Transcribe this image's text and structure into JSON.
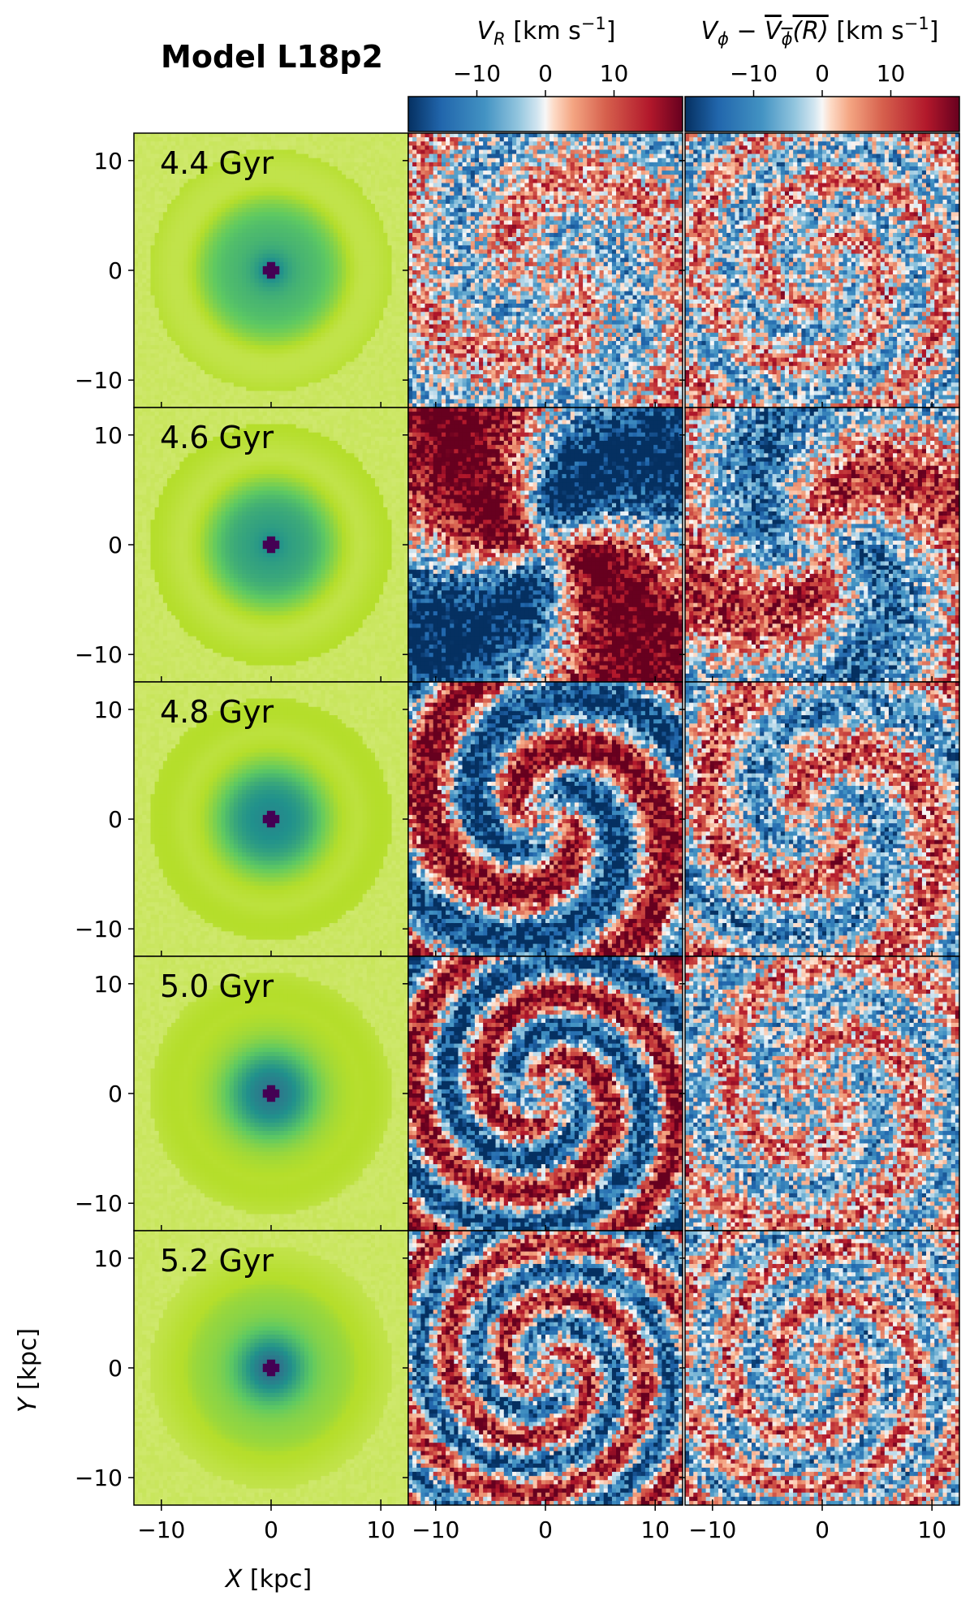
{
  "figure": {
    "title": "Model L18p2",
    "xlabel_prefix": "X",
    "xlabel_suffix": " [kpc]",
    "ylabel_prefix": "Y",
    "ylabel_suffix": " [kpc]",
    "cbar_vr_label": "V_R [km s^-1]",
    "cbar_vphi_label": "V_phi - mean V_phi(R) [km s^-1]"
  },
  "chart_data": {
    "type": "heatmap",
    "title": "Model L18p2",
    "xlabel": "X [kpc]",
    "ylabel": "Y [kpc]",
    "xlim": [
      -12.5,
      12.5
    ],
    "ylim": [
      -12.5,
      12.5
    ],
    "xticks": [
      -10,
      0,
      10
    ],
    "yticks": [
      -10,
      0,
      10
    ],
    "tick_labels": [
      "−10",
      "0",
      "10"
    ],
    "columns": [
      {
        "name": "surface-density",
        "colormap": "viridis"
      },
      {
        "name": "V_R [km s^-1]",
        "colormap": "RdBu_r",
        "clim": [
          -20,
          20
        ],
        "cbar_ticks": [
          -10,
          0,
          10
        ]
      },
      {
        "name": "V_phi - mean V_phi(R) [km s^-1]",
        "colormap": "RdBu_r",
        "clim": [
          -20,
          20
        ],
        "cbar_ticks": [
          -10,
          0,
          10
        ]
      }
    ],
    "snapshots": [
      {
        "label": "4.4 Gyr",
        "vr_amp": 0.35,
        "vr_arms": 2,
        "vr_wind": 0.25,
        "vr_phase": 0.6,
        "vp_amp": 0.4,
        "vp_arms": 2,
        "vp_wind": 0.5,
        "vp_phase": 2.0
      },
      {
        "label": "4.6 Gyr",
        "vr_amp": 1.25,
        "vr_arms": 2,
        "vr_wind": 0.05,
        "vr_phase": 1.9,
        "vp_amp": 0.7,
        "vp_arms": 2,
        "vp_wind": 0.12,
        "vp_phase": 4.0
      },
      {
        "label": "4.8 Gyr",
        "vr_amp": 1.0,
        "vr_arms": 2,
        "vr_wind": 0.3,
        "vr_phase": 0.8,
        "vp_amp": 0.55,
        "vp_arms": 2,
        "vp_wind": 0.3,
        "vp_phase": 1.2
      },
      {
        "label": "5.0 Gyr",
        "vr_amp": 0.95,
        "vr_arms": 2,
        "vr_wind": 0.45,
        "vr_phase": 2.3,
        "vp_amp": 0.4,
        "vp_arms": 2,
        "vp_wind": 0.4,
        "vp_phase": 0.5
      },
      {
        "label": "5.2 Gyr",
        "vr_amp": 0.8,
        "vr_arms": 2,
        "vr_wind": 0.55,
        "vr_phase": 3.5,
        "vp_amp": 0.45,
        "vp_arms": 2,
        "vp_wind": 0.6,
        "vp_phase": 3.0
      }
    ]
  }
}
